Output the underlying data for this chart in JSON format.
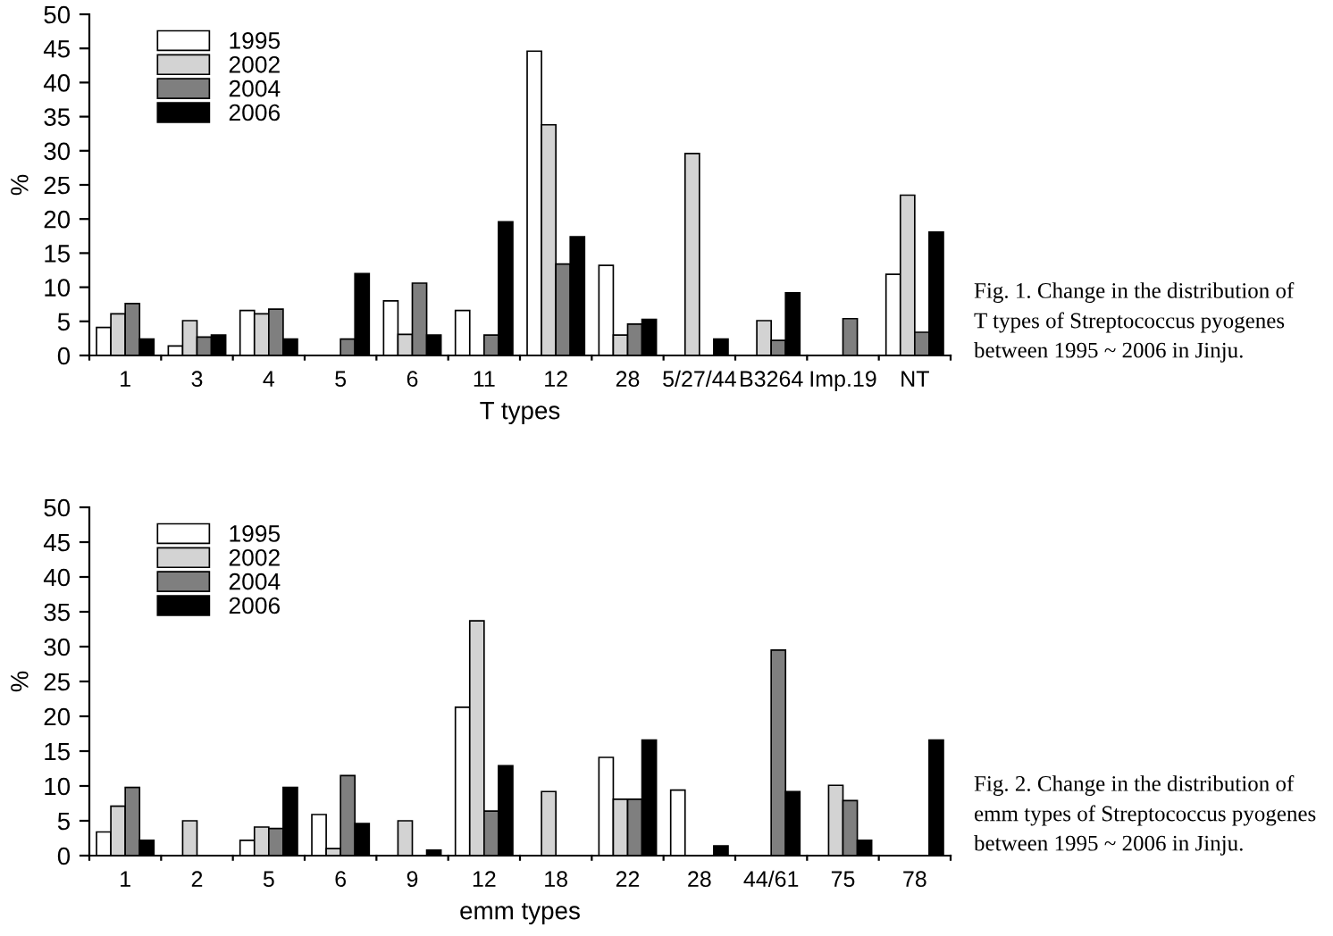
{
  "chart_data": [
    {
      "type": "bar",
      "ylabel": "%",
      "xlabel": "T types",
      "categories": [
        "1",
        "3",
        "4",
        "5",
        "6",
        "11",
        "12",
        "28",
        "5/27/44",
        "B3264",
        "Imp.19",
        "NT"
      ],
      "series": [
        {
          "name": "1995",
          "color": "#ffffff",
          "values": [
            4.1,
            1.4,
            6.6,
            null,
            8.0,
            6.6,
            44.6,
            13.2,
            null,
            null,
            null,
            11.9
          ]
        },
        {
          "name": "2002",
          "color": "#d3d3d3",
          "values": [
            6.1,
            5.1,
            6.1,
            null,
            3.1,
            null,
            33.8,
            3.0,
            29.6,
            5.1,
            null,
            23.5
          ]
        },
        {
          "name": "2004",
          "color": "#7f7f7f",
          "values": [
            7.6,
            2.7,
            6.8,
            2.4,
            10.6,
            3.0,
            13.4,
            4.6,
            null,
            2.2,
            5.4,
            3.4
          ]
        },
        {
          "name": "2006",
          "color": "#000000",
          "values": [
            2.4,
            3.0,
            2.4,
            12.0,
            3.0,
            19.6,
            17.4,
            5.3,
            2.4,
            9.2,
            null,
            18.1
          ]
        }
      ],
      "ylim": [
        0,
        50
      ],
      "yticks": [
        0,
        5,
        10,
        15,
        20,
        25,
        30,
        35,
        40,
        45,
        50
      ],
      "grid": false,
      "legend": "top left",
      "annotations": [
        "Fig. 1. Change in the distribution of\nT types of Streptococcus pyogenes\nbetween 1995 ~ 2006 in Jinju."
      ]
    },
    {
      "type": "bar",
      "ylabel": "%",
      "xlabel": "emm types",
      "categories": [
        "1",
        "2",
        "5",
        "6",
        "9",
        "12",
        "18",
        "22",
        "28",
        "44/61",
        "75",
        "78"
      ],
      "series": [
        {
          "name": "1995",
          "color": "#ffffff",
          "values": [
            3.4,
            null,
            2.2,
            5.9,
            null,
            21.3,
            null,
            14.1,
            9.4,
            null,
            null,
            null
          ]
        },
        {
          "name": "2002",
          "color": "#d3d3d3",
          "values": [
            7.1,
            5.0,
            4.1,
            1.0,
            5.0,
            33.7,
            9.2,
            8.1,
            null,
            null,
            10.1,
            null
          ]
        },
        {
          "name": "2004",
          "color": "#7f7f7f",
          "values": [
            9.8,
            null,
            3.9,
            11.5,
            null,
            6.4,
            null,
            8.1,
            null,
            29.5,
            7.9,
            null
          ]
        },
        {
          "name": "2006",
          "color": "#000000",
          "values": [
            2.2,
            null,
            9.8,
            4.6,
            0.8,
            12.9,
            null,
            16.6,
            1.4,
            9.2,
            2.2,
            16.6
          ]
        }
      ],
      "ylim": [
        0,
        50
      ],
      "yticks": [
        0,
        5,
        10,
        15,
        20,
        25,
        30,
        35,
        40,
        45,
        50
      ],
      "grid": false,
      "legend": "top left",
      "annotations": [
        "Fig. 2. Change in the distribution of\nemm types of Streptococcus pyogenes\nbetween 1995 ~ 2006 in Jinju."
      ]
    }
  ]
}
